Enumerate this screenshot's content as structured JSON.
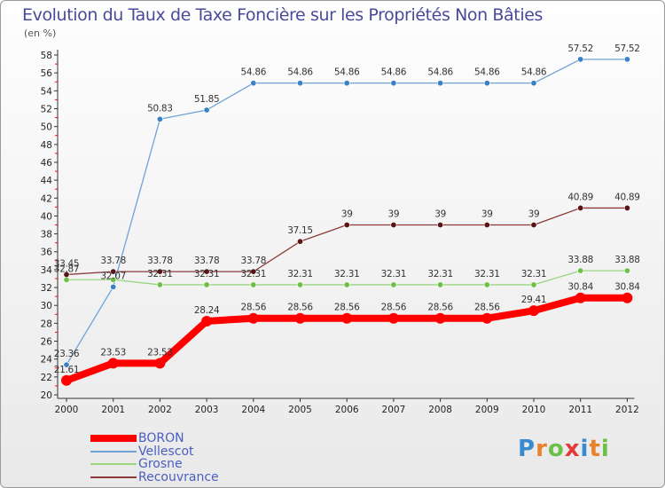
{
  "header": {
    "title": "Evolution du Taux de Taxe Foncière sur les Propriétés Non Bâties",
    "unit": "(en %)"
  },
  "chart_data": {
    "type": "line",
    "title": "Evolution du Taux de Taxe Foncière sur les Propriétés Non Bâties",
    "ylabel": "(en %)",
    "xlabel": "",
    "ylim": [
      20,
      58
    ],
    "ytick_step": 2,
    "grid": false,
    "categories": [
      "2000",
      "2001",
      "2002",
      "2003",
      "2004",
      "2005",
      "2006",
      "2007",
      "2008",
      "2009",
      "2010",
      "2011",
      "2012"
    ],
    "series": [
      {
        "name": "BORON",
        "color": "#ff0000",
        "bold": true,
        "values": [
          21.61,
          23.53,
          23.53,
          28.24,
          28.56,
          28.56,
          28.56,
          28.56,
          28.56,
          28.56,
          29.41,
          30.84,
          30.84
        ],
        "labels": [
          "21.61",
          "23.53",
          "23.53",
          "28.24",
          "28.56",
          "28.56",
          "28.56",
          "28.56",
          "28.56",
          "28.56",
          "29.41",
          "30.84",
          "30.84"
        ]
      },
      {
        "name": "Vellescot",
        "color": "#6fa3d8",
        "marker": "#3a82c8",
        "values": [
          23.36,
          32.07,
          50.83,
          51.85,
          54.86,
          54.86,
          54.86,
          54.86,
          54.86,
          54.86,
          54.86,
          57.52,
          57.52
        ],
        "labels": [
          "23.36",
          "32.07",
          "50.83",
          "51.85",
          "54.86",
          "54.86",
          "54.86",
          "54.86",
          "54.86",
          "54.86",
          "54.86",
          "57.52",
          "57.52"
        ]
      },
      {
        "name": "Grosne",
        "color": "#9ad67e",
        "marker": "#6cc048",
        "values": [
          32.87,
          32.87,
          32.31,
          32.31,
          32.31,
          32.31,
          32.31,
          32.31,
          32.31,
          32.31,
          32.31,
          33.88,
          33.88
        ],
        "labels": [
          "32.87",
          "",
          "32.31",
          "32.31",
          "32.31",
          "32.31",
          "32.31",
          "32.31",
          "32.31",
          "32.31",
          "32.31",
          "33.88",
          "33.88"
        ]
      },
      {
        "name": "Recouvrance",
        "color": "#8a3a3a",
        "marker": "#5a1414",
        "values": [
          33.45,
          33.78,
          33.78,
          33.78,
          33.78,
          37.15,
          39,
          39,
          39,
          39,
          39,
          40.89,
          40.89
        ],
        "labels": [
          "33.45",
          "33.78",
          "33.78",
          "33.78",
          "33.78",
          "37.15",
          "39",
          "39",
          "39",
          "39",
          "39",
          "40.89",
          "40.89"
        ]
      }
    ],
    "legend": {
      "position": "bottom-left",
      "items": [
        "BORON",
        "Vellescot",
        "Grosne",
        "Recouvrance"
      ]
    }
  },
  "logo": {
    "letters": [
      "P",
      "r",
      "o",
      "x",
      "i",
      "t",
      "i"
    ]
  },
  "colors": {
    "axis": "#333333",
    "title": "#4a4a9a",
    "legend_text": "#4a5ec0",
    "tick_red": "#ff0000"
  }
}
